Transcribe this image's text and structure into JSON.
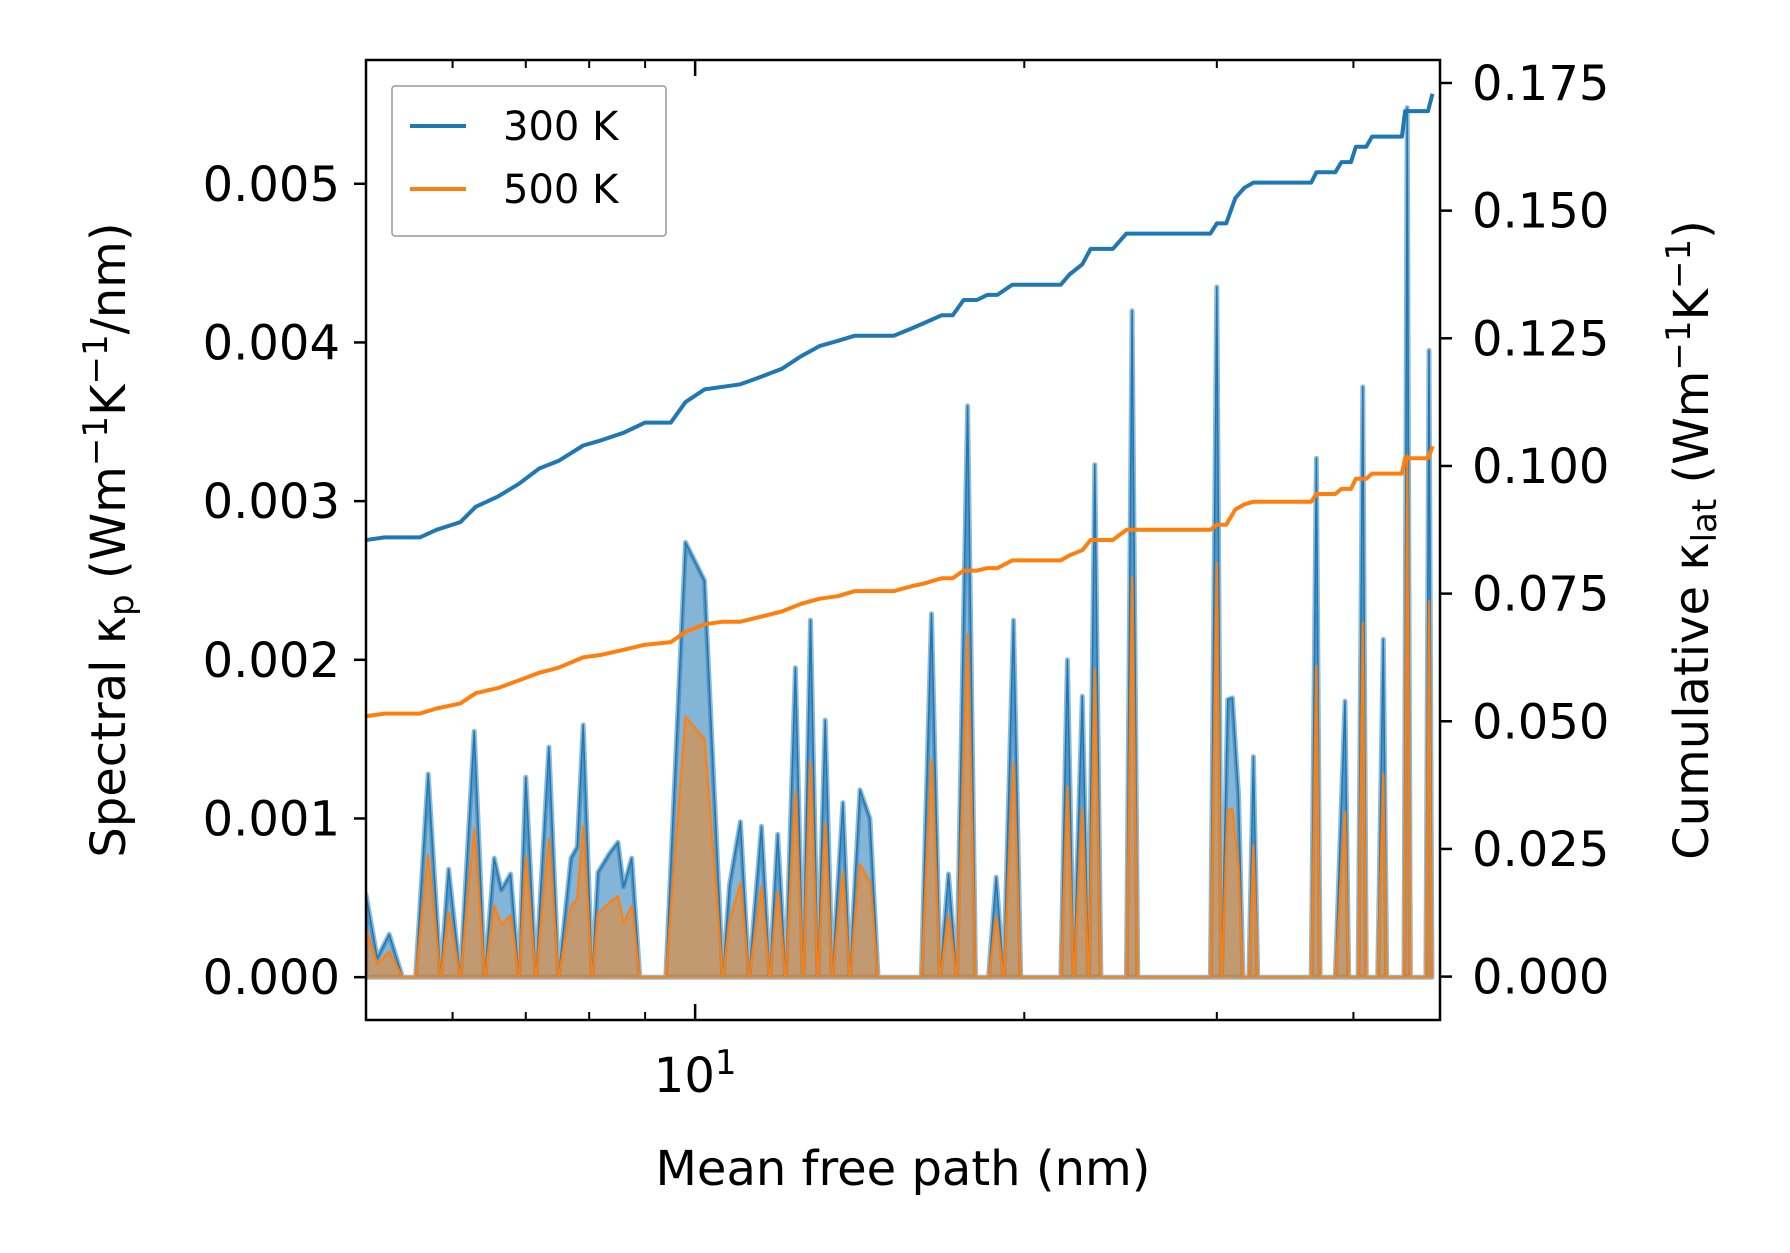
{
  "chart_data": {
    "type": "line",
    "title": "",
    "xlabel": "Mean free path (nm)",
    "x_scale": "log",
    "xlim": [
      5.0,
      48.0
    ],
    "x_ticks": [
      {
        "value": 10,
        "base": "10",
        "exp": "1"
      }
    ],
    "left_axis": {
      "label_parts": {
        "pre": "Spectral κ",
        "sub": "p",
        "mid1": " (Wm",
        "sup1": "−1",
        "mid2": "K",
        "sup2": "−1",
        "post": "/nm)"
      },
      "ylim": [
        -0.00027,
        0.00578
      ],
      "ticks": [
        "0.000",
        "0.001",
        "0.002",
        "0.003",
        "0.004",
        "0.005"
      ]
    },
    "right_axis": {
      "label_parts": {
        "pre": "Cumulative κ",
        "sub": "lat",
        "mid1": " (Wm",
        "sup1": "−1",
        "mid2": "K",
        "sup2": "−1",
        "post": ")"
      },
      "ylim": [
        -0.0085,
        0.1795
      ],
      "ticks": [
        "0.000",
        "0.025",
        "0.050",
        "0.075",
        "0.100",
        "0.125",
        "0.150",
        "0.175"
      ]
    },
    "colors": {
      "300K": "#1f77b4",
      "500K": "#ff7f0e",
      "fill300": "#1f77b4",
      "fill500": "#ff7f0e"
    },
    "legend": {
      "position": "upper-left",
      "entries": [
        "300 K",
        "500 K"
      ]
    },
    "spectral_300K": [
      [
        5.0,
        0.00052
      ],
      [
        5.12,
        0.00012
      ],
      [
        5.25,
        0.00027
      ],
      [
        5.4,
        0.0
      ],
      [
        5.55,
        0.0
      ],
      [
        5.7,
        0.00128
      ],
      [
        5.85,
        0.0
      ],
      [
        5.95,
        0.00068
      ],
      [
        6.1,
        0.0
      ],
      [
        6.28,
        0.00155
      ],
      [
        6.42,
        0.0
      ],
      [
        6.55,
        0.00075
      ],
      [
        6.65,
        0.00055
      ],
      [
        6.78,
        0.00065
      ],
      [
        6.9,
        0.0
      ],
      [
        7.0,
        0.00126
      ],
      [
        7.15,
        0.0
      ],
      [
        7.35,
        0.00145
      ],
      [
        7.5,
        0.0
      ],
      [
        7.7,
        0.00075
      ],
      [
        7.8,
        0.00082
      ],
      [
        7.9,
        0.00159
      ],
      [
        8.05,
        0.0
      ],
      [
        8.15,
        0.00066
      ],
      [
        8.35,
        0.00078
      ],
      [
        8.5,
        0.00085
      ],
      [
        8.6,
        0.00057
      ],
      [
        8.75,
        0.00075
      ],
      [
        8.9,
        0.0
      ],
      [
        9.2,
        0.0
      ],
      [
        9.4,
        0.0
      ],
      [
        9.8,
        0.00274
      ],
      [
        10.2,
        0.0025
      ],
      [
        10.6,
        0.0
      ],
      [
        10.75,
        0.00058
      ],
      [
        11.0,
        0.00098
      ],
      [
        11.2,
        0.0
      ],
      [
        11.5,
        0.00095
      ],
      [
        11.7,
        0.0
      ],
      [
        11.9,
        0.0009
      ],
      [
        12.1,
        0.0
      ],
      [
        12.35,
        0.00195
      ],
      [
        12.55,
        0.0
      ],
      [
        12.75,
        0.00225
      ],
      [
        12.95,
        0.0
      ],
      [
        13.15,
        0.00162
      ],
      [
        13.35,
        0.0
      ],
      [
        13.65,
        0.0011
      ],
      [
        13.85,
        0.0
      ],
      [
        14.15,
        0.00118
      ],
      [
        14.45,
        0.001
      ],
      [
        14.7,
        0.0
      ],
      [
        15.3,
        0.0
      ],
      [
        16.1,
        0.0
      ],
      [
        16.45,
        0.00229
      ],
      [
        16.75,
        0.0
      ],
      [
        17.05,
        0.00065
      ],
      [
        17.35,
        0.0
      ],
      [
        17.75,
        0.0036
      ],
      [
        18.05,
        0.0
      ],
      [
        18.55,
        0.0
      ],
      [
        18.85,
        0.00063
      ],
      [
        19.15,
        0.0
      ],
      [
        19.55,
        0.00225
      ],
      [
        19.85,
        0.0
      ],
      [
        20.5,
        0.0
      ],
      [
        21.6,
        0.0
      ],
      [
        21.9,
        0.002
      ],
      [
        22.2,
        0.0
      ],
      [
        22.6,
        0.00177
      ],
      [
        22.9,
        0.0
      ],
      [
        23.2,
        0.00323
      ],
      [
        23.5,
        0.0
      ],
      [
        24.1,
        0.0
      ],
      [
        24.8,
        0.0
      ],
      [
        25.1,
        0.0042
      ],
      [
        25.4,
        0.0
      ],
      [
        27.0,
        0.0
      ],
      [
        29.0,
        0.0
      ],
      [
        29.6,
        0.0
      ],
      [
        30.0,
        0.00435
      ],
      [
        30.3,
        0.0
      ],
      [
        30.7,
        0.00175
      ],
      [
        31.0,
        0.00176
      ],
      [
        31.4,
        0.00115
      ],
      [
        31.7,
        0.0
      ],
      [
        32.1,
        0.0
      ],
      [
        32.4,
        0.00139
      ],
      [
        32.7,
        0.0
      ],
      [
        34.0,
        0.0
      ],
      [
        36.6,
        0.0
      ],
      [
        37.0,
        0.00327
      ],
      [
        37.3,
        0.0
      ],
      [
        38.5,
        0.0
      ],
      [
        39.3,
        0.00174
      ],
      [
        39.6,
        0.0
      ],
      [
        40.4,
        0.0
      ],
      [
        40.8,
        0.00372
      ],
      [
        41.1,
        0.0
      ],
      [
        42.1,
        0.0
      ],
      [
        42.6,
        0.00213
      ],
      [
        42.9,
        0.0
      ],
      [
        44.5,
        0.0
      ],
      [
        44.8,
        0.00548
      ],
      [
        45.1,
        0.0
      ],
      [
        46.6,
        0.0
      ],
      [
        46.9,
        0.00395
      ],
      [
        47.2,
        0.0
      ]
    ],
    "spectral_500K": [
      [
        5.0,
        0.00031
      ],
      [
        5.12,
        8e-05
      ],
      [
        5.25,
        0.00016
      ],
      [
        5.4,
        0.0
      ],
      [
        5.55,
        0.0
      ],
      [
        5.7,
        0.00077
      ],
      [
        5.85,
        0.0
      ],
      [
        5.95,
        0.00041
      ],
      [
        6.1,
        0.0
      ],
      [
        6.28,
        0.00093
      ],
      [
        6.42,
        0.0
      ],
      [
        6.55,
        0.00045
      ],
      [
        6.65,
        0.00033
      ],
      [
        6.78,
        0.00039
      ],
      [
        6.9,
        0.0
      ],
      [
        7.0,
        0.00076
      ],
      [
        7.15,
        0.0
      ],
      [
        7.35,
        0.00087
      ],
      [
        7.5,
        0.0
      ],
      [
        7.7,
        0.00045
      ],
      [
        7.8,
        0.00049
      ],
      [
        7.9,
        0.00095
      ],
      [
        8.05,
        0.0
      ],
      [
        8.15,
        0.0004
      ],
      [
        8.35,
        0.00047
      ],
      [
        8.5,
        0.00051
      ],
      [
        8.6,
        0.00034
      ],
      [
        8.75,
        0.00045
      ],
      [
        8.9,
        0.0
      ],
      [
        9.2,
        0.0
      ],
      [
        9.4,
        0.0
      ],
      [
        9.8,
        0.00164
      ],
      [
        10.2,
        0.0015
      ],
      [
        10.6,
        0.0
      ],
      [
        10.75,
        0.00035
      ],
      [
        11.0,
        0.00059
      ],
      [
        11.2,
        0.0
      ],
      [
        11.5,
        0.00057
      ],
      [
        11.7,
        0.0
      ],
      [
        11.9,
        0.00054
      ],
      [
        12.1,
        0.0
      ],
      [
        12.35,
        0.00117
      ],
      [
        12.55,
        0.0
      ],
      [
        12.75,
        0.00135
      ],
      [
        12.95,
        0.0
      ],
      [
        13.15,
        0.00097
      ],
      [
        13.35,
        0.0
      ],
      [
        13.65,
        0.00066
      ],
      [
        13.85,
        0.0
      ],
      [
        14.15,
        0.00071
      ],
      [
        14.45,
        0.0006
      ],
      [
        14.7,
        0.0
      ],
      [
        15.3,
        0.0
      ],
      [
        16.1,
        0.0
      ],
      [
        16.45,
        0.00137
      ],
      [
        16.75,
        0.0
      ],
      [
        17.05,
        0.00039
      ],
      [
        17.35,
        0.0
      ],
      [
        17.75,
        0.00216
      ],
      [
        18.05,
        0.0
      ],
      [
        18.55,
        0.0
      ],
      [
        18.85,
        0.00038
      ],
      [
        19.15,
        0.0
      ],
      [
        19.55,
        0.00135
      ],
      [
        19.85,
        0.0
      ],
      [
        20.5,
        0.0
      ],
      [
        21.6,
        0.0
      ],
      [
        21.9,
        0.0012
      ],
      [
        22.2,
        0.0
      ],
      [
        22.6,
        0.00106
      ],
      [
        22.9,
        0.0
      ],
      [
        23.2,
        0.00194
      ],
      [
        23.5,
        0.0
      ],
      [
        24.1,
        0.0
      ],
      [
        24.8,
        0.0
      ],
      [
        25.1,
        0.00252
      ],
      [
        25.4,
        0.0
      ],
      [
        27.0,
        0.0
      ],
      [
        29.0,
        0.0
      ],
      [
        29.6,
        0.0
      ],
      [
        30.0,
        0.00261
      ],
      [
        30.3,
        0.0
      ],
      [
        30.7,
        0.00105
      ],
      [
        31.0,
        0.00106
      ],
      [
        31.4,
        0.00069
      ],
      [
        31.7,
        0.0
      ],
      [
        32.1,
        0.0
      ],
      [
        32.4,
        0.00083
      ],
      [
        32.7,
        0.0
      ],
      [
        34.0,
        0.0
      ],
      [
        36.6,
        0.0
      ],
      [
        37.0,
        0.00196
      ],
      [
        37.3,
        0.0
      ],
      [
        38.5,
        0.0
      ],
      [
        39.3,
        0.00104
      ],
      [
        39.6,
        0.0
      ],
      [
        40.4,
        0.0
      ],
      [
        40.8,
        0.00223
      ],
      [
        41.1,
        0.0
      ],
      [
        42.1,
        0.0
      ],
      [
        42.6,
        0.00128
      ],
      [
        42.9,
        0.0
      ],
      [
        44.5,
        0.0
      ],
      [
        44.8,
        0.00329
      ],
      [
        45.1,
        0.0
      ],
      [
        46.6,
        0.0
      ],
      [
        46.9,
        0.00237
      ],
      [
        47.2,
        0.0
      ]
    ],
    "cumulative_300K": [
      [
        5.0,
        0.0855
      ],
      [
        5.2,
        0.086
      ],
      [
        5.6,
        0.086
      ],
      [
        5.8,
        0.0875
      ],
      [
        6.1,
        0.089
      ],
      [
        6.3,
        0.092
      ],
      [
        6.6,
        0.094
      ],
      [
        6.9,
        0.0965
      ],
      [
        7.2,
        0.0995
      ],
      [
        7.5,
        0.101
      ],
      [
        7.9,
        0.104
      ],
      [
        8.2,
        0.105
      ],
      [
        8.6,
        0.1065
      ],
      [
        9.0,
        0.1085
      ],
      [
        9.5,
        0.1085
      ],
      [
        9.8,
        0.1125
      ],
      [
        10.2,
        0.115
      ],
      [
        10.6,
        0.1155
      ],
      [
        11.0,
        0.116
      ],
      [
        11.5,
        0.1175
      ],
      [
        12.0,
        0.119
      ],
      [
        12.5,
        0.1215
      ],
      [
        13.0,
        0.1235
      ],
      [
        13.5,
        0.1245
      ],
      [
        14.0,
        0.1255
      ],
      [
        14.5,
        0.1255
      ],
      [
        15.2,
        0.1255
      ],
      [
        15.8,
        0.127
      ],
      [
        16.2,
        0.128
      ],
      [
        16.8,
        0.1295
      ],
      [
        17.2,
        0.1295
      ],
      [
        17.6,
        0.1325
      ],
      [
        18.1,
        0.1325
      ],
      [
        18.5,
        0.1335
      ],
      [
        18.9,
        0.1335
      ],
      [
        19.5,
        0.1355
      ],
      [
        20.2,
        0.1355
      ],
      [
        21.6,
        0.1355
      ],
      [
        22.0,
        0.1375
      ],
      [
        22.6,
        0.1395
      ],
      [
        23.0,
        0.1425
      ],
      [
        23.5,
        0.1425
      ],
      [
        24.1,
        0.1425
      ],
      [
        24.8,
        0.1455
      ],
      [
        25.4,
        0.1455
      ],
      [
        29.6,
        0.1455
      ],
      [
        30.0,
        0.1475
      ],
      [
        30.6,
        0.1475
      ],
      [
        31.2,
        0.1525
      ],
      [
        31.8,
        0.1545
      ],
      [
        32.4,
        0.1555
      ],
      [
        36.6,
        0.1555
      ],
      [
        37.0,
        0.1575
      ],
      [
        38.5,
        0.1575
      ],
      [
        39.0,
        0.1595
      ],
      [
        39.8,
        0.1595
      ],
      [
        40.2,
        0.1625
      ],
      [
        41.1,
        0.1625
      ],
      [
        41.6,
        0.1645
      ],
      [
        44.3,
        0.1645
      ],
      [
        44.6,
        0.1695
      ],
      [
        45.0,
        0.1695
      ],
      [
        46.8,
        0.1695
      ],
      [
        47.2,
        0.1725
      ]
    ],
    "cumulative_500K": [
      [
        5.0,
        0.051
      ],
      [
        5.2,
        0.0515
      ],
      [
        5.6,
        0.0515
      ],
      [
        5.8,
        0.0525
      ],
      [
        6.1,
        0.0535
      ],
      [
        6.3,
        0.0555
      ],
      [
        6.6,
        0.0565
      ],
      [
        6.9,
        0.058
      ],
      [
        7.2,
        0.0595
      ],
      [
        7.5,
        0.0605
      ],
      [
        7.9,
        0.0625
      ],
      [
        8.2,
        0.063
      ],
      [
        8.6,
        0.064
      ],
      [
        9.0,
        0.065
      ],
      [
        9.5,
        0.0655
      ],
      [
        9.8,
        0.0675
      ],
      [
        10.2,
        0.069
      ],
      [
        10.6,
        0.0695
      ],
      [
        11.0,
        0.0695
      ],
      [
        11.5,
        0.0705
      ],
      [
        12.0,
        0.0715
      ],
      [
        12.5,
        0.073
      ],
      [
        13.0,
        0.074
      ],
      [
        13.5,
        0.0745
      ],
      [
        14.0,
        0.0755
      ],
      [
        14.5,
        0.0755
      ],
      [
        15.2,
        0.0755
      ],
      [
        15.8,
        0.0765
      ],
      [
        16.2,
        0.077
      ],
      [
        16.8,
        0.078
      ],
      [
        17.2,
        0.078
      ],
      [
        17.6,
        0.0795
      ],
      [
        18.1,
        0.0795
      ],
      [
        18.5,
        0.08
      ],
      [
        18.9,
        0.08
      ],
      [
        19.5,
        0.0815
      ],
      [
        20.2,
        0.0815
      ],
      [
        21.6,
        0.0815
      ],
      [
        22.0,
        0.0825
      ],
      [
        22.6,
        0.0835
      ],
      [
        23.0,
        0.0855
      ],
      [
        23.5,
        0.0855
      ],
      [
        24.1,
        0.0855
      ],
      [
        24.8,
        0.0875
      ],
      [
        25.4,
        0.0875
      ],
      [
        29.6,
        0.0875
      ],
      [
        30.0,
        0.0885
      ],
      [
        30.6,
        0.0885
      ],
      [
        31.2,
        0.0915
      ],
      [
        31.8,
        0.0925
      ],
      [
        32.4,
        0.093
      ],
      [
        36.6,
        0.093
      ],
      [
        37.0,
        0.0945
      ],
      [
        38.5,
        0.0945
      ],
      [
        39.0,
        0.0955
      ],
      [
        39.8,
        0.0955
      ],
      [
        40.2,
        0.0975
      ],
      [
        41.1,
        0.0975
      ],
      [
        41.6,
        0.0985
      ],
      [
        44.3,
        0.0985
      ],
      [
        44.6,
        0.1015
      ],
      [
        45.0,
        0.1015
      ],
      [
        46.8,
        0.1015
      ],
      [
        47.2,
        0.1035
      ]
    ]
  }
}
